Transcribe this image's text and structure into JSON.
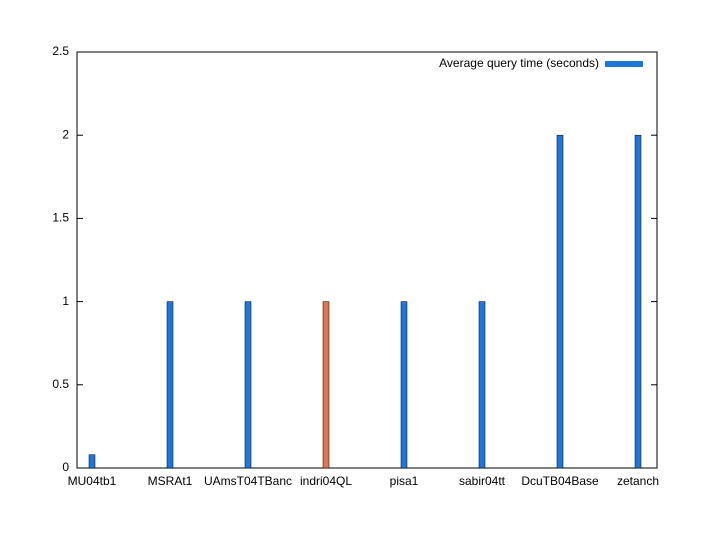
{
  "chart_data": {
    "type": "bar",
    "categories": [
      "MU04tb1",
      "MSRAt1",
      "UAmsT04TBanc",
      "indri04QL",
      "pisa1",
      "sabir04tt",
      "DcuTB04Base",
      "zetanch"
    ],
    "series": [
      {
        "name": "Average query time (seconds)",
        "color": "#1e78dc",
        "values": [
          0.08,
          1,
          1,
          1,
          1,
          1,
          2,
          2
        ]
      }
    ],
    "colors": [
      "#1e78dc",
      "#1e78dc",
      "#1e78dc",
      "#e0784a",
      "#1e78dc",
      "#1e78dc",
      "#1e78dc",
      "#1e78dc"
    ],
    "ylim": [
      0,
      2.5
    ],
    "yticks": [
      0,
      0.5,
      1,
      1.5,
      2,
      2.5
    ],
    "grid": false,
    "legend": "top-right"
  }
}
